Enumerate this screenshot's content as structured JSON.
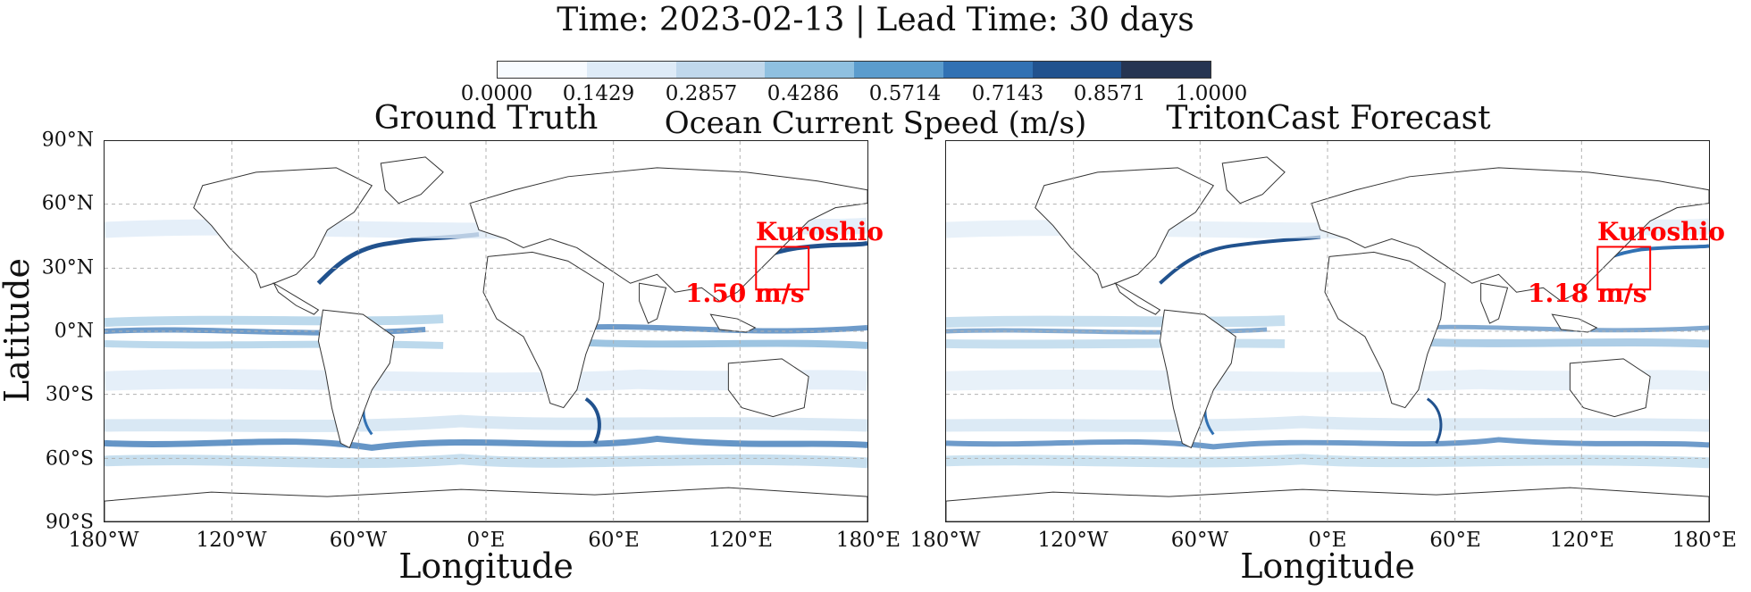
{
  "figure": {
    "title": "Time: 2023-02-13 | Lead Time: 30 days",
    "ylabel": "Latitude",
    "xlabel": "Longitude"
  },
  "colorbar": {
    "label": "Ocean Current Speed (m/s)",
    "ticks": [
      "0.0000",
      "0.1429",
      "0.2857",
      "0.4286",
      "0.5714",
      "0.7143",
      "0.8571",
      "1.0000"
    ],
    "colors": [
      "#f7fbff",
      "#deebf7",
      "#c0d8ec",
      "#8fc0e0",
      "#5b9ccd",
      "#3171b3",
      "#21528e",
      "#263552"
    ]
  },
  "axes": {
    "lat_ticks": [
      "90°N",
      "60°N",
      "30°N",
      "0°N",
      "30°S",
      "60°S",
      "90°S"
    ],
    "lon_ticks": [
      "180°W",
      "120°W",
      "60°W",
      "0°E",
      "60°E",
      "120°E",
      "180°E"
    ]
  },
  "panels": [
    {
      "title": "Ground Truth",
      "region_label": "Kuroshio",
      "region_speed": "1.50 m/s",
      "region_box": {
        "lon_min": 125,
        "lon_max": 150,
        "lat_min": 20,
        "lat_max": 40
      }
    },
    {
      "title": "TritonCast Forecast",
      "region_label": "Kuroshio",
      "region_speed": "1.18 m/s",
      "region_box": {
        "lon_min": 125,
        "lon_max": 150,
        "lat_min": 20,
        "lat_max": 40
      }
    }
  ],
  "colors": {
    "annotation": "#ff0000",
    "coastline": "#333333",
    "gridline": "#b0b0b0"
  }
}
